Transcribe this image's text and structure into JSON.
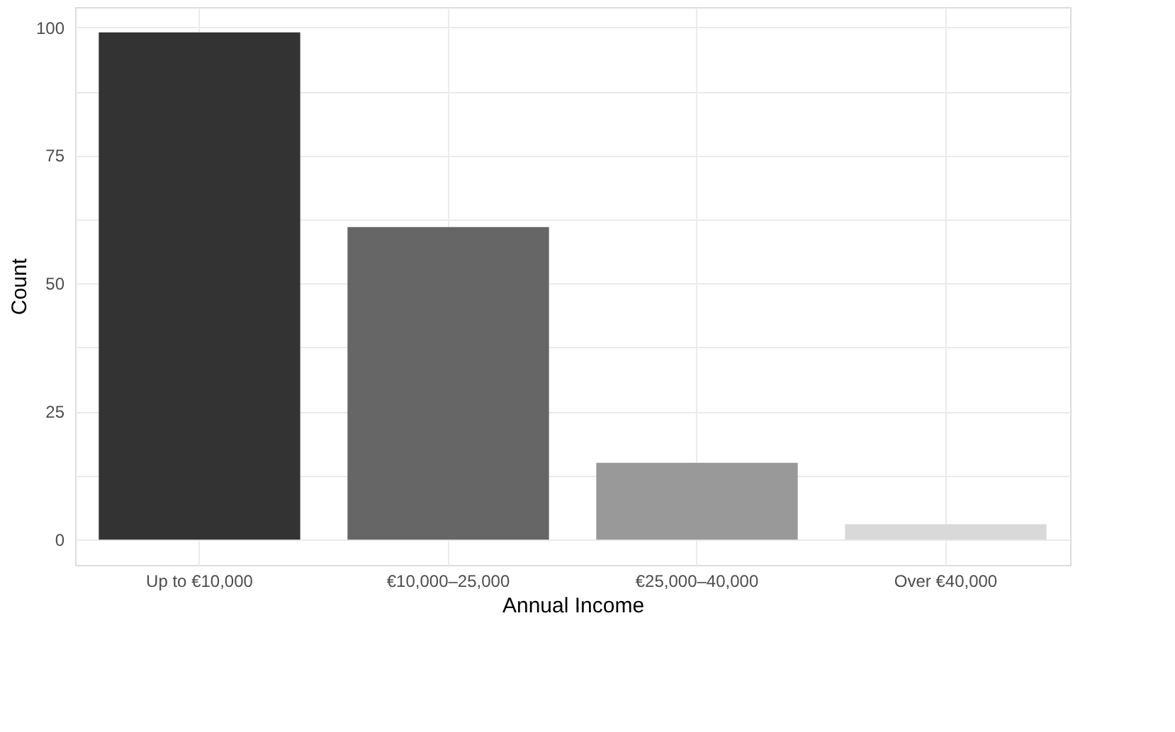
{
  "chart_data": {
    "type": "bar",
    "xlabel": "Annual Income",
    "ylabel": "Count",
    "categories": [
      "Up to €10,000",
      "€10,000–25,000",
      "€25,000–40,000",
      "Over €40,000"
    ],
    "values": [
      99,
      61,
      15,
      3
    ],
    "colors": [
      "#333333",
      "#666666",
      "#999999",
      "#d9d9d9"
    ],
    "ylim": [
      -4.95,
      103.95
    ],
    "yticks": [
      0,
      {
        "value": 12.5,
        "label": null
      },
      25,
      {
        "value": 37.5,
        "label": null
      },
      50,
      {
        "value": 62.5,
        "label": null
      },
      75,
      {
        "value": 87.5,
        "label": null
      },
      100
    ],
    "grid": true,
    "legend": false
  }
}
